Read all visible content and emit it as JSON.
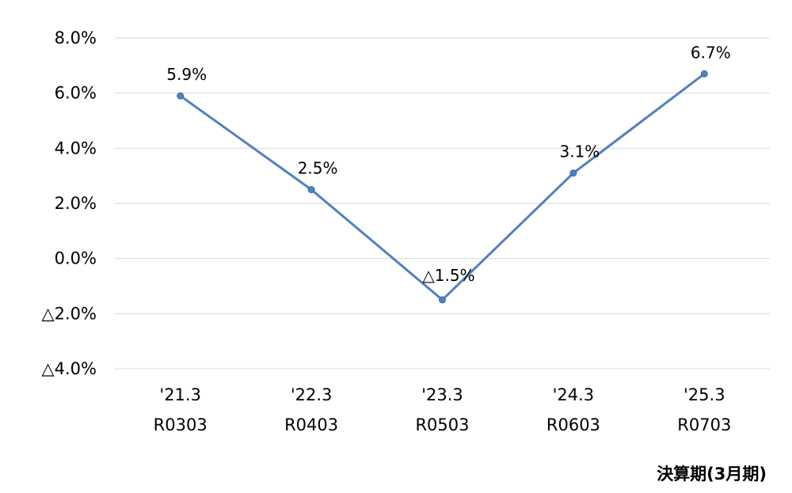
{
  "chart_data": {
    "type": "line",
    "title": "",
    "xlabel": "決算期(3月期)",
    "ylabel": "",
    "categories": [
      [
        "'21.3",
        "R0303"
      ],
      [
        "'22.3",
        "R0403"
      ],
      [
        "'23.3",
        "R0503"
      ],
      [
        "'24.3",
        "R0603"
      ],
      [
        "'25.3",
        "R0703"
      ]
    ],
    "series": [
      {
        "values": [
          5.9,
          2.5,
          -1.5,
          3.1,
          6.7
        ],
        "data_labels": [
          "5.9%",
          "2.5%",
          "△1.5%",
          "3.1%",
          "6.7%"
        ]
      }
    ],
    "ylim": [
      -4,
      8
    ],
    "yticks": [
      8,
      6,
      4,
      2,
      0,
      -2,
      -4
    ],
    "ytick_labels": [
      "8.0%",
      "6.0%",
      "4.0%",
      "2.0%",
      "0.0%",
      "△2.0%",
      "△4.0%"
    ],
    "grid": true,
    "legend": "none",
    "colors": {
      "line": "#4f81bd",
      "marker": "#4f81bd",
      "grid": "#d9d9d9"
    }
  }
}
